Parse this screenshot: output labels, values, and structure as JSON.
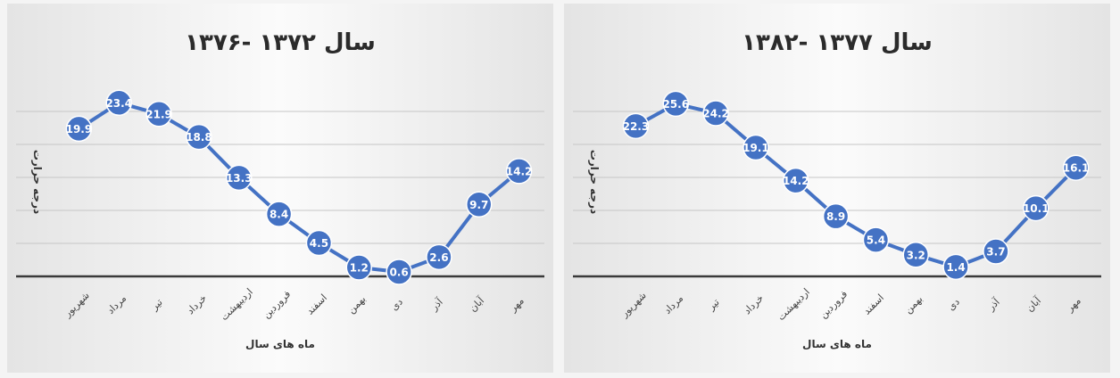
{
  "chart_data": [
    {
      "type": "line",
      "title": "سال ۱۳۷۲ -۱۳۷۶",
      "xlabel": "ماه های سال",
      "ylabel": "درجه حرارت",
      "categories": [
        "شهریور",
        "مرداد",
        "تیر",
        "خرداد",
        "اردیبهشت",
        "فروردین",
        "اسفند",
        "بهمن",
        "دی",
        "آذر",
        "آبان",
        "مهر"
      ],
      "series": [
        {
          "values": [
            19.9,
            23.4,
            21.9,
            18.8,
            13.3,
            8.4,
            4.5,
            1.2,
            0.6,
            2.6,
            9.7,
            14.2
          ]
        }
      ],
      "ylim": [
        0,
        25
      ],
      "grid": true,
      "color": "#4472c4"
    },
    {
      "type": "line",
      "title": "سال ۱۳۷۷ -۱۳۸۲",
      "xlabel": "ماه های سال",
      "ylabel": "درجه حرارت",
      "categories": [
        "شهریور",
        "مرداد",
        "تیر",
        "خرداد",
        "اردیبهشت",
        "فروردین",
        "اسفند",
        "بهمن",
        "دی",
        "آذر",
        "آبان",
        "مهر"
      ],
      "series": [
        {
          "values": [
            22.3,
            25.6,
            24.2,
            19.1,
            14.2,
            8.9,
            5.4,
            3.2,
            1.4,
            3.7,
            10.1,
            16.1
          ]
        }
      ],
      "ylim": [
        0,
        27.5
      ],
      "grid": true,
      "color": "#4472c4"
    }
  ]
}
